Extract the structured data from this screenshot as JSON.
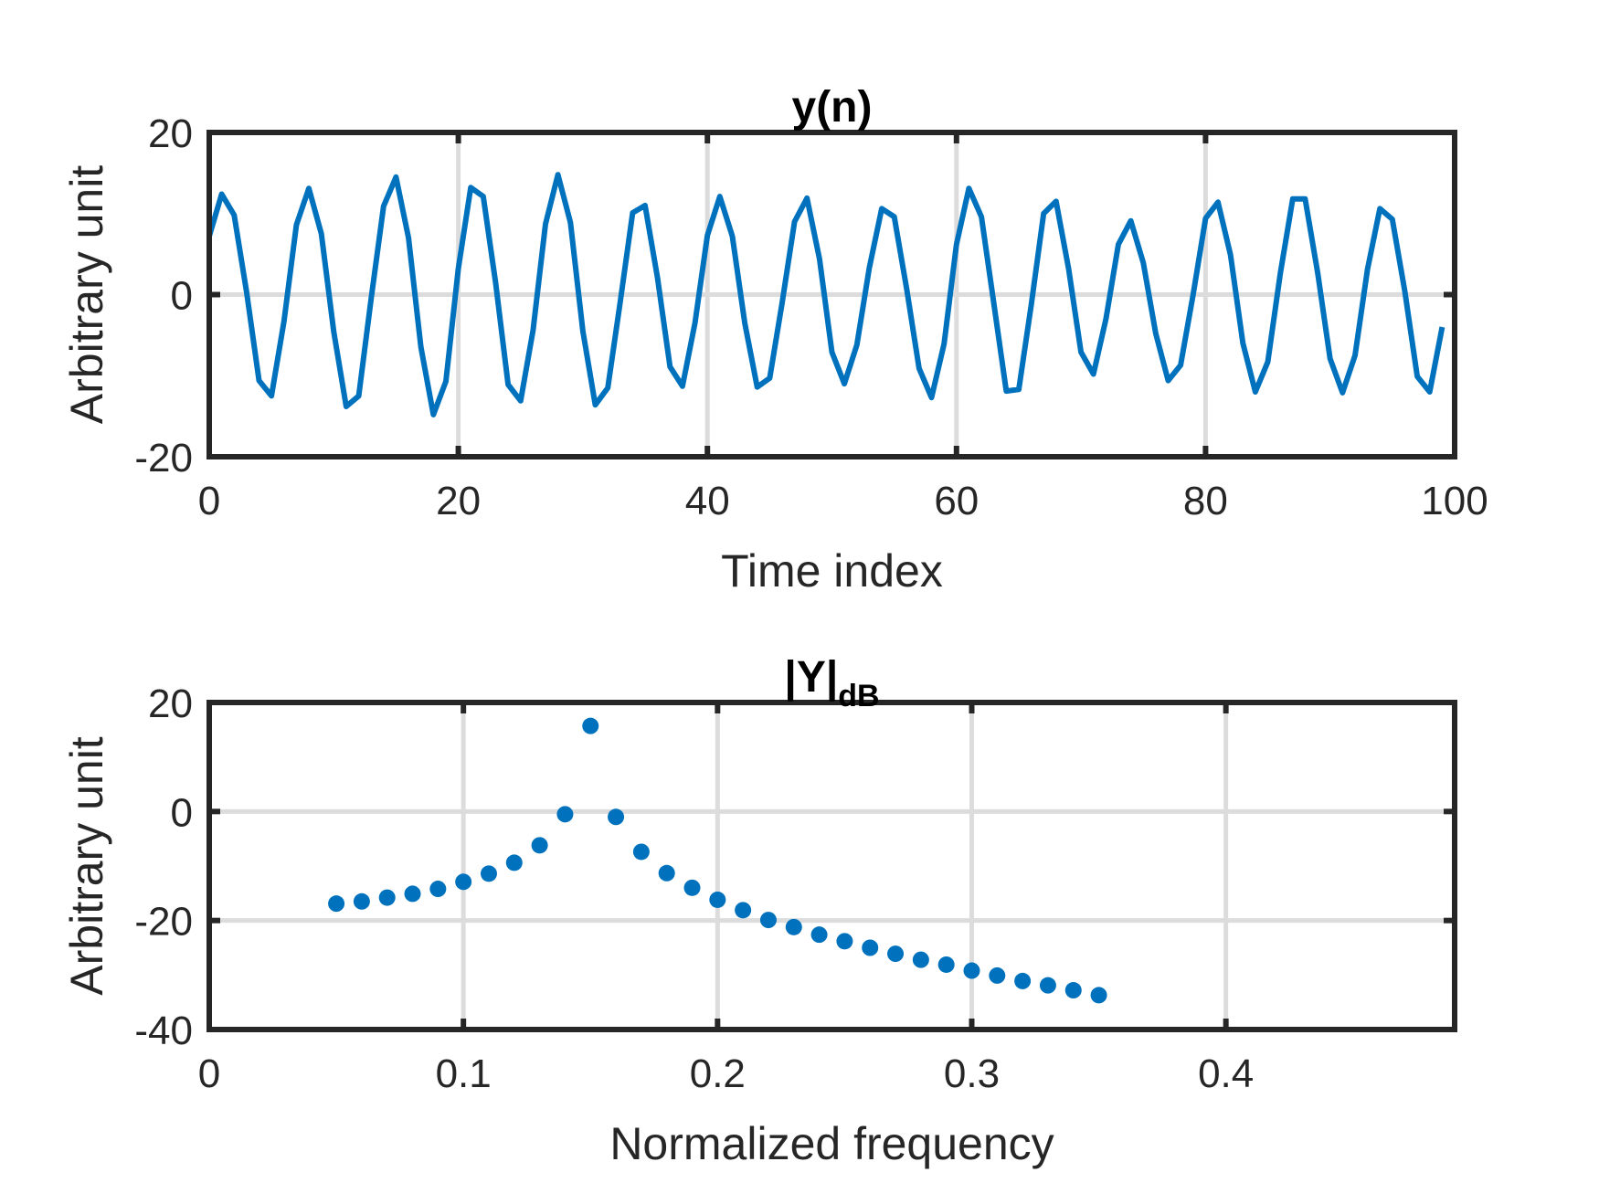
{
  "colors": {
    "series": "#0072BD",
    "axes": "#262626",
    "grid": "#dcdcdc"
  },
  "chart_data": [
    {
      "type": "line",
      "title": "y(n)",
      "xlabel": "Time index",
      "ylabel": "Arbitrary unit",
      "xlim": [
        0,
        100
      ],
      "ylim": [
        -20,
        20
      ],
      "xticks": [
        0,
        20,
        40,
        60,
        80,
        100
      ],
      "yticks": [
        -20,
        0,
        20
      ],
      "xtick_labels": [
        "0",
        "20",
        "40",
        "60",
        "80",
        "100"
      ],
      "ytick_labels": [
        "-20",
        "0",
        "20"
      ],
      "grid": true,
      "x": [
        0,
        1,
        2,
        3,
        4,
        5,
        6,
        7,
        8,
        9,
        10,
        11,
        12,
        13,
        14,
        15,
        16,
        17,
        18,
        19,
        20,
        21,
        22,
        23,
        24,
        25,
        26,
        27,
        28,
        29,
        30,
        31,
        32,
        33,
        34,
        35,
        36,
        37,
        38,
        39,
        40,
        41,
        42,
        43,
        44,
        45,
        46,
        47,
        48,
        49,
        50,
        51,
        52,
        53,
        54,
        55,
        56,
        57,
        58,
        59,
        60,
        61,
        62,
        63,
        64,
        65,
        66,
        67,
        68,
        69,
        70,
        71,
        72,
        73,
        74,
        75,
        76,
        77,
        78,
        79,
        80,
        81,
        82,
        83,
        84,
        85,
        86,
        87,
        88,
        89,
        90,
        91,
        92,
        93,
        94,
        95,
        96,
        97,
        98,
        99
      ],
      "y": [
        7.2,
        12.4,
        9.8,
        0.3,
        -10.6,
        -12.5,
        -3.3,
        8.6,
        13.1,
        7.5,
        -4.6,
        -13.8,
        -12.5,
        -0.5,
        10.9,
        14.5,
        7.0,
        -6.5,
        -14.8,
        -10.7,
        3.2,
        13.2,
        12.1,
        1.4,
        -11.1,
        -13.1,
        -4.4,
        8.7,
        14.8,
        8.9,
        -4.5,
        -13.6,
        -11.5,
        -0.9,
        10.1,
        11.0,
        2.0,
        -8.9,
        -11.3,
        -3.5,
        7.3,
        12.1,
        7.2,
        -3.5,
        -11.4,
        -10.3,
        -1.0,
        9.0,
        11.9,
        4.4,
        -7.1,
        -11.0,
        -6.2,
        3.3,
        10.6,
        9.6,
        0.7,
        -9.1,
        -12.7,
        -6.1,
        6.2,
        13.1,
        9.6,
        -1.1,
        -11.9,
        -11.7,
        -1.3,
        10.0,
        11.5,
        3.2,
        -7.1,
        -9.8,
        -3.0,
        6.2,
        9.1,
        3.9,
        -4.8,
        -10.6,
        -8.7,
        0.0,
        9.4,
        11.4,
        4.9,
        -6.0,
        -12.0,
        -8.3,
        2.6,
        11.8,
        11.8,
        2.7,
        -7.9,
        -12.1,
        -7.5,
        3.1,
        10.6,
        9.3,
        0.4,
        -10.1,
        -12.0,
        -4.0
      ]
    },
    {
      "type": "scatter",
      "title": "|Y|",
      "title_subscript": "dB",
      "xlabel": "Normalized frequency",
      "ylabel": "Arbitrary unit",
      "xlim": [
        0,
        0.49
      ],
      "ylim": [
        -40,
        20
      ],
      "xticks": [
        0,
        0.1,
        0.2,
        0.3,
        0.4
      ],
      "yticks": [
        -40,
        -20,
        0,
        20
      ],
      "xtick_labels": [
        "0",
        "0.1",
        "0.2",
        "0.3",
        "0.4"
      ],
      "ytick_labels": [
        "-40",
        "-20",
        "0",
        "20"
      ],
      "grid": true,
      "x": [
        0.05,
        0.06,
        0.07,
        0.08,
        0.09,
        0.1,
        0.11,
        0.12,
        0.13,
        0.14,
        0.15,
        0.16,
        0.17,
        0.18,
        0.19,
        0.2,
        0.21,
        0.22,
        0.23,
        0.24,
        0.25,
        0.26,
        0.27,
        0.28,
        0.29,
        0.3,
        0.31,
        0.32,
        0.33,
        0.34,
        0.35
      ],
      "y": [
        -16.9,
        -16.5,
        -15.8,
        -15.1,
        -14.2,
        -12.9,
        -11.4,
        -9.4,
        -6.2,
        -0.5,
        15.7,
        -1.0,
        -7.4,
        -11.3,
        -14.0,
        -16.2,
        -18.1,
        -19.9,
        -21.2,
        -22.6,
        -23.8,
        -25.0,
        -26.1,
        -27.2,
        -28.1,
        -29.2,
        -30.1,
        -31.1,
        -31.9,
        -32.8,
        -33.7
      ]
    }
  ]
}
